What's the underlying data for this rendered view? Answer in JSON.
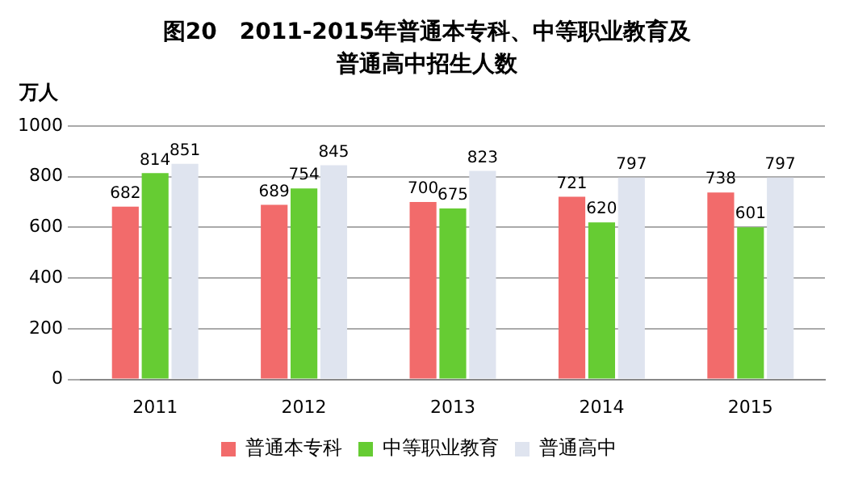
{
  "chart_data": {
    "type": "bar",
    "title": "图20　2011-2015年普通本专科、中等职业教育及普通高中招生人数",
    "ylabel": "万人",
    "categories": [
      "2011",
      "2012",
      "2013",
      "2014",
      "2015"
    ],
    "series": [
      {
        "name": "普通本专科",
        "color": "#f26b6b",
        "values": [
          682,
          689,
          700,
          721,
          738
        ]
      },
      {
        "name": "中等职业教育",
        "color": "#66cc33",
        "values": [
          814,
          754,
          675,
          620,
          601
        ]
      },
      {
        "name": "普通高中",
        "color": "#dfe4ef",
        "values": [
          851,
          845,
          823,
          797,
          797
        ]
      }
    ],
    "ylim": [
      0,
      1000
    ],
    "yticks": [
      0,
      200,
      400,
      600,
      800,
      1000
    ],
    "grid": "y",
    "legend": "bottom",
    "data_labels": true
  }
}
